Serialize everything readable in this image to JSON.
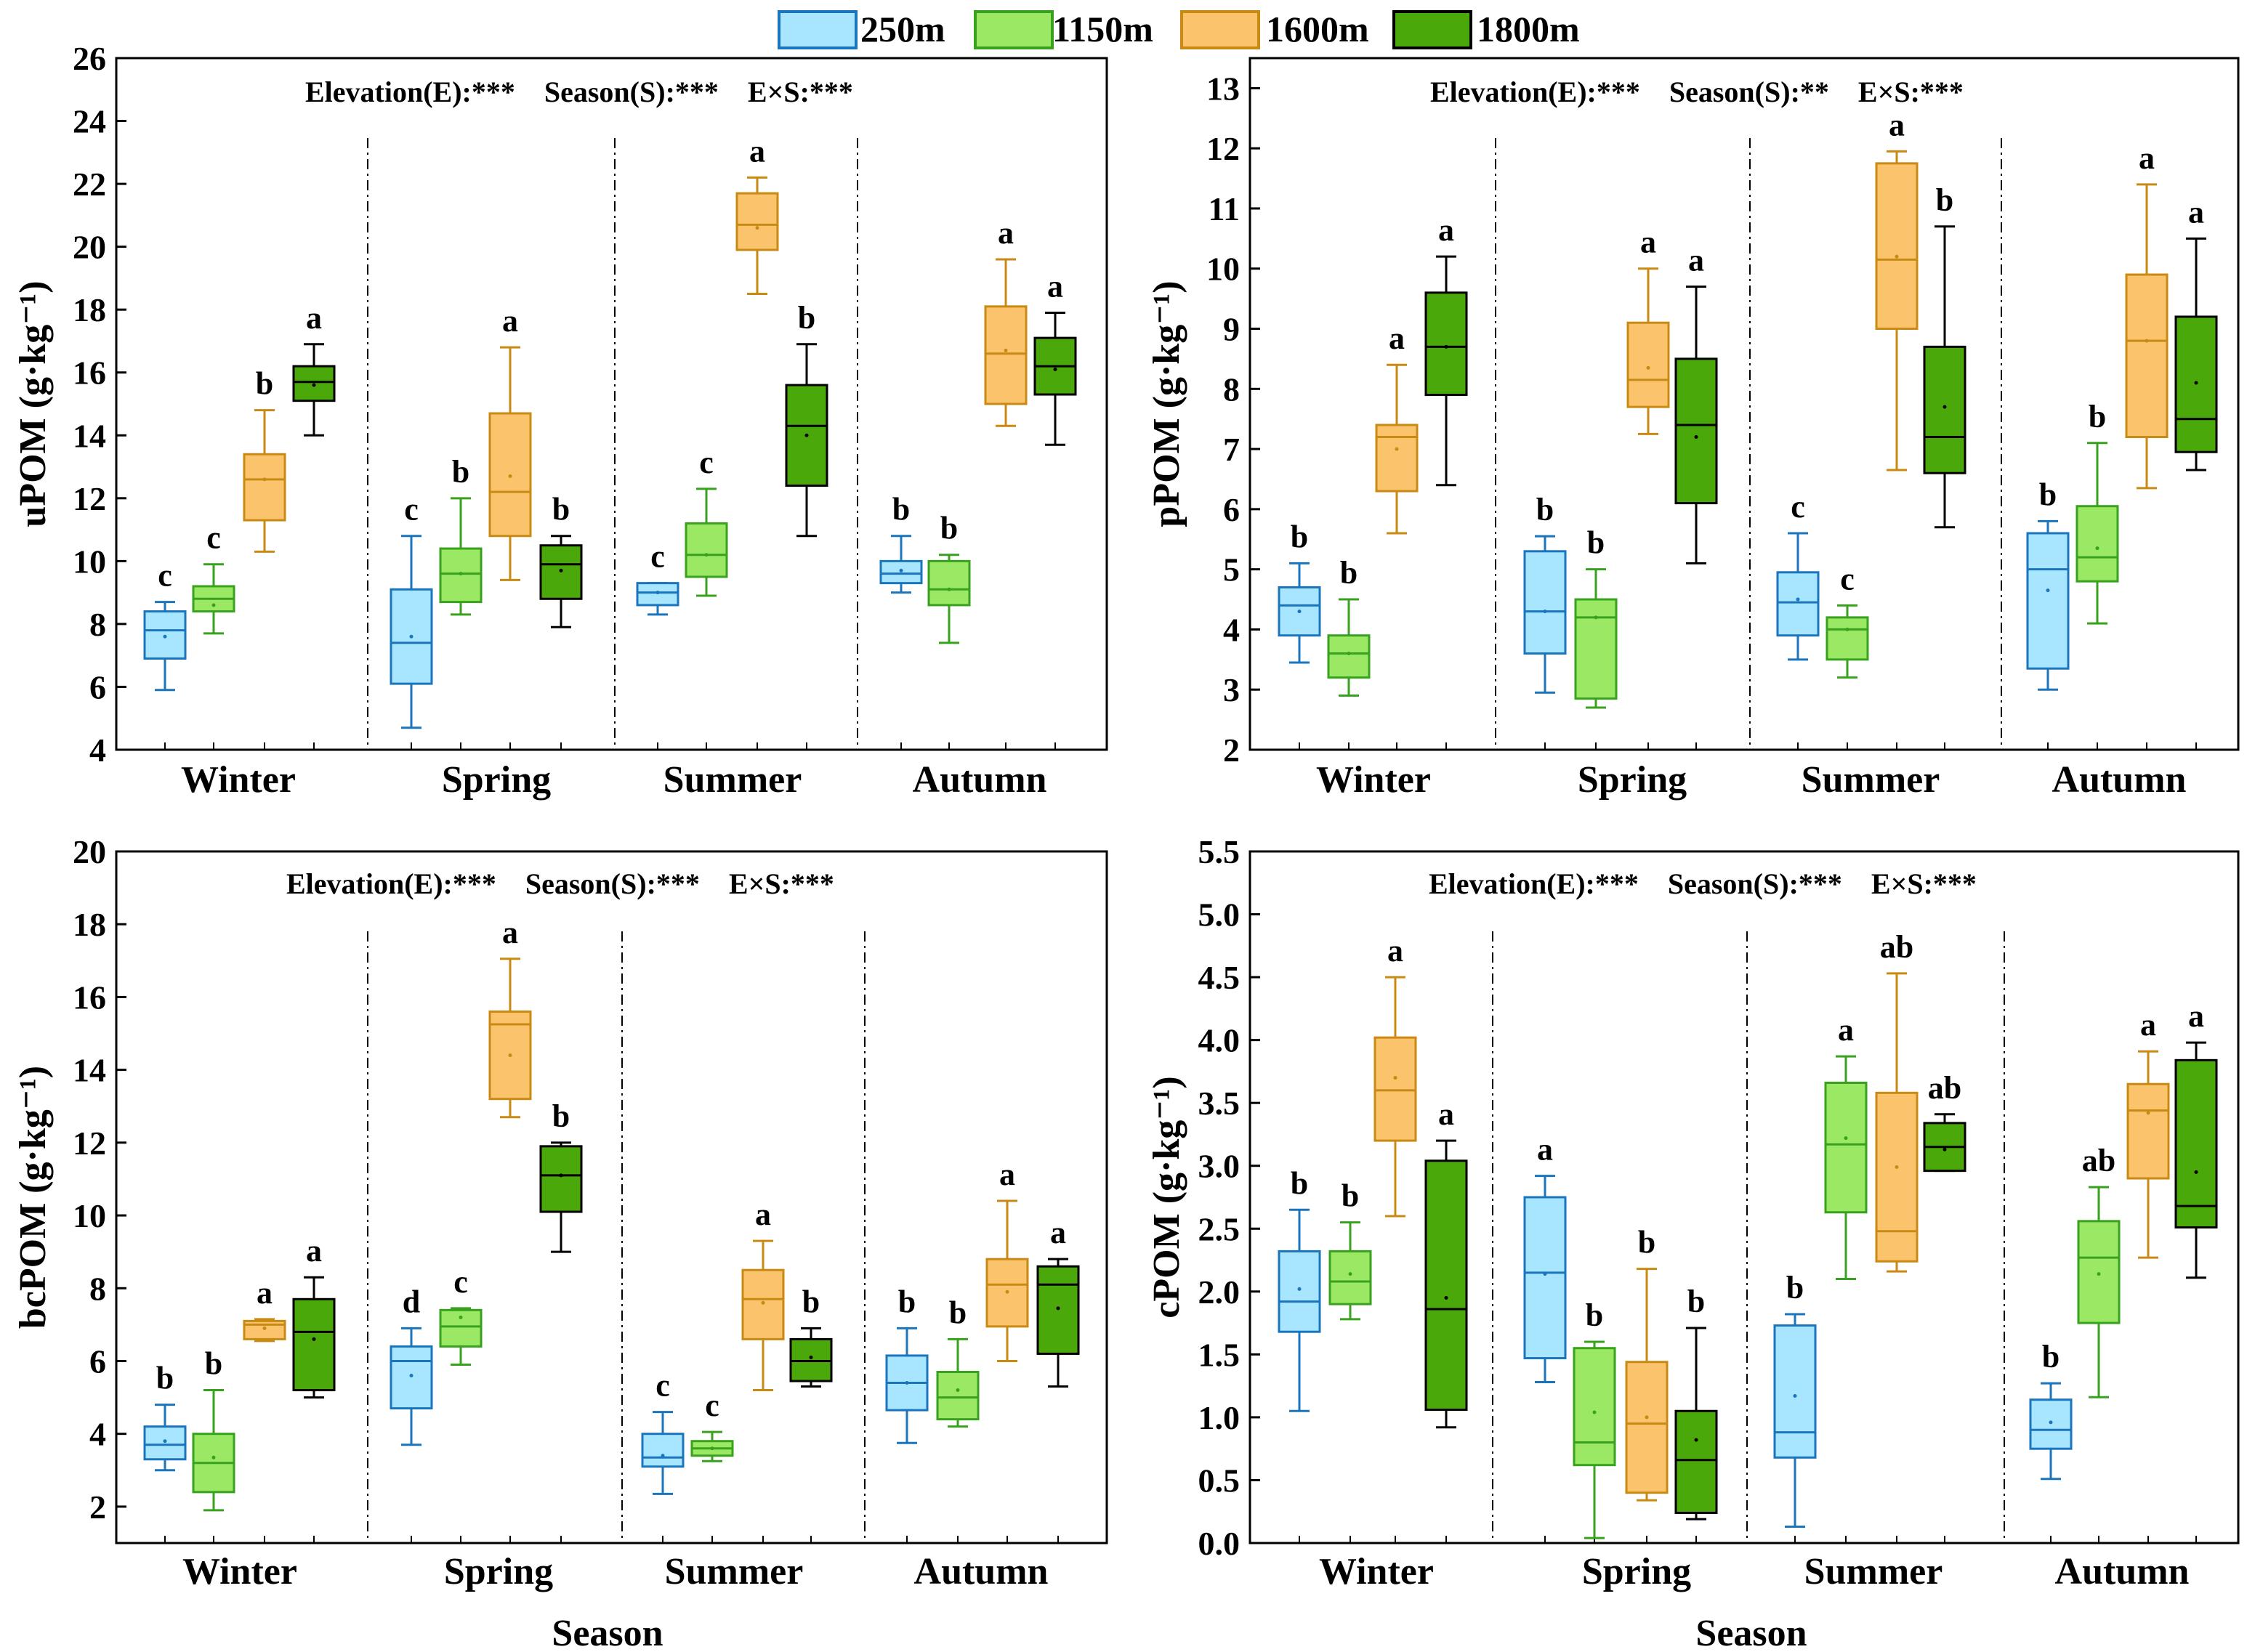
{
  "legend": [
    {
      "label": "250m",
      "fill": "#a8e6ff",
      "stroke": "#1b75bc"
    },
    {
      "label": "1150m",
      "fill": "#9be865",
      "stroke": "#38a21e"
    },
    {
      "label": "1600m",
      "fill": "#fbc46c",
      "stroke": "#c98a14"
    },
    {
      "label": "1800m",
      "fill": "#4aa80b",
      "stroke": "#000000"
    }
  ],
  "chart_data": [
    {
      "type": "box",
      "title": "",
      "ylabel": "uPOM (g·kg⁻¹)",
      "xlabel": "",
      "ylim": [
        4,
        26
      ],
      "yticks": [
        4,
        6,
        8,
        10,
        12,
        14,
        16,
        18,
        20,
        22,
        24,
        26
      ],
      "ytick_labels": [
        "4",
        "6",
        "8",
        "10",
        "12",
        "14",
        "16",
        "18",
        "20",
        "22",
        "24",
        "26"
      ],
      "categories": [
        "Winter",
        "Spring",
        "Summer",
        "Autumn"
      ],
      "stats_text": "Elevation(E):***    Season(S):***    E×S:***",
      "series": [
        "250m",
        "1150m",
        "1600m",
        "1800m"
      ],
      "boxes": [
        [
          {
            "min": 5.9,
            "q1": 6.9,
            "median": 7.8,
            "q3": 8.4,
            "max": 8.7,
            "mean": 7.6,
            "letter": "c"
          },
          {
            "min": 7.7,
            "q1": 8.4,
            "median": 8.8,
            "q3": 9.2,
            "max": 9.9,
            "mean": 8.6,
            "letter": "c"
          },
          {
            "min": 10.3,
            "q1": 11.3,
            "median": 12.6,
            "q3": 13.4,
            "max": 14.8,
            "mean": 12.6,
            "letter": "b"
          },
          {
            "min": 14.0,
            "q1": 15.1,
            "median": 15.7,
            "q3": 16.2,
            "max": 16.9,
            "mean": 15.6,
            "letter": "a"
          }
        ],
        [
          {
            "min": 4.7,
            "q1": 6.1,
            "median": 7.4,
            "q3": 9.1,
            "max": 10.8,
            "mean": 7.6,
            "letter": "c"
          },
          {
            "min": 8.3,
            "q1": 8.7,
            "median": 9.6,
            "q3": 10.4,
            "max": 12.0,
            "mean": 9.6,
            "letter": "b"
          },
          {
            "min": 9.4,
            "q1": 10.8,
            "median": 12.2,
            "q3": 14.7,
            "max": 16.8,
            "mean": 12.7,
            "letter": "a"
          },
          {
            "min": 7.9,
            "q1": 8.8,
            "median": 9.9,
            "q3": 10.5,
            "max": 10.8,
            "mean": 9.7,
            "letter": "b"
          }
        ],
        [
          {
            "min": 8.3,
            "q1": 8.6,
            "median": 9.0,
            "q3": 9.3,
            "max": 9.3,
            "mean": 9.0,
            "letter": "c"
          },
          {
            "min": 8.9,
            "q1": 9.5,
            "median": 10.2,
            "q3": 11.2,
            "max": 12.3,
            "mean": 10.2,
            "letter": "c"
          },
          {
            "min": 18.5,
            "q1": 19.9,
            "median": 20.7,
            "q3": 21.7,
            "max": 22.2,
            "mean": 20.6,
            "letter": "a"
          },
          {
            "min": 10.8,
            "q1": 12.4,
            "median": 14.3,
            "q3": 15.6,
            "max": 16.9,
            "mean": 14.0,
            "letter": "b"
          }
        ],
        [
          {
            "min": 9.0,
            "q1": 9.3,
            "median": 9.6,
            "q3": 10.0,
            "max": 10.8,
            "mean": 9.7,
            "letter": "b"
          },
          {
            "min": 7.4,
            "q1": 8.6,
            "median": 9.1,
            "q3": 10.0,
            "max": 10.2,
            "mean": 9.1,
            "letter": "b"
          },
          {
            "min": 14.3,
            "q1": 15.0,
            "median": 16.6,
            "q3": 18.1,
            "max": 19.6,
            "mean": 16.7,
            "letter": "a"
          },
          {
            "min": 13.7,
            "q1": 15.3,
            "median": 16.2,
            "q3": 17.1,
            "max": 17.9,
            "mean": 16.1,
            "letter": "a"
          }
        ]
      ]
    },
    {
      "type": "box",
      "title": "",
      "ylabel": "pPOM (g·kg⁻¹)",
      "xlabel": "",
      "ylim": [
        2,
        13.5
      ],
      "yticks": [
        2,
        3,
        4,
        5,
        6,
        7,
        8,
        9,
        10,
        11,
        12,
        13
      ],
      "ytick_labels": [
        "2",
        "3",
        "4",
        "5",
        "6",
        "7",
        "8",
        "9",
        "10",
        "11",
        "12",
        "13"
      ],
      "categories": [
        "Winter",
        "Spring",
        "Summer",
        "Autumn"
      ],
      "stats_text": "Elevation(E):***    Season(S):**    E×S:***",
      "series": [
        "250m",
        "1150m",
        "1600m",
        "1800m"
      ],
      "boxes": [
        [
          {
            "min": 3.45,
            "q1": 3.9,
            "median": 4.4,
            "q3": 4.7,
            "max": 5.1,
            "mean": 4.3,
            "letter": "b"
          },
          {
            "min": 2.9,
            "q1": 3.2,
            "median": 3.6,
            "q3": 3.9,
            "max": 4.5,
            "mean": 3.6,
            "letter": "b"
          },
          {
            "min": 5.6,
            "q1": 6.3,
            "median": 7.2,
            "q3": 7.4,
            "max": 8.4,
            "mean": 7.0,
            "letter": "a"
          },
          {
            "min": 6.4,
            "q1": 7.9,
            "median": 8.7,
            "q3": 9.6,
            "max": 10.2,
            "mean": 8.7,
            "letter": "a"
          }
        ],
        [
          {
            "min": 2.95,
            "q1": 3.6,
            "median": 4.3,
            "q3": 5.3,
            "max": 5.55,
            "mean": 4.3,
            "letter": "b"
          },
          {
            "min": 2.7,
            "q1": 2.85,
            "median": 4.2,
            "q3": 4.5,
            "max": 5.0,
            "mean": 4.2,
            "letter": "b"
          },
          {
            "min": 7.25,
            "q1": 7.7,
            "median": 8.15,
            "q3": 9.1,
            "max": 10.0,
            "mean": 8.35,
            "letter": "a"
          },
          {
            "min": 5.1,
            "q1": 6.1,
            "median": 7.4,
            "q3": 8.5,
            "max": 9.7,
            "mean": 7.2,
            "letter": "a"
          }
        ],
        [
          {
            "min": 3.5,
            "q1": 3.9,
            "median": 4.45,
            "q3": 4.95,
            "max": 5.6,
            "mean": 4.5,
            "letter": "c"
          },
          {
            "min": 3.2,
            "q1": 3.5,
            "median": 4.0,
            "q3": 4.2,
            "max": 4.4,
            "mean": 4.0,
            "letter": "c"
          },
          {
            "min": 6.65,
            "q1": 9.0,
            "median": 10.15,
            "q3": 11.75,
            "max": 11.95,
            "mean": 10.2,
            "letter": "a"
          },
          {
            "min": 5.7,
            "q1": 6.6,
            "median": 7.2,
            "q3": 8.7,
            "max": 10.7,
            "mean": 7.7,
            "letter": "b"
          }
        ],
        [
          {
            "min": 3.0,
            "q1": 3.35,
            "median": 5.0,
            "q3": 5.6,
            "max": 5.8,
            "mean": 4.65,
            "letter": "b"
          },
          {
            "min": 4.1,
            "q1": 4.8,
            "median": 5.2,
            "q3": 6.05,
            "max": 7.1,
            "mean": 5.35,
            "letter": "b"
          },
          {
            "min": 6.35,
            "q1": 7.2,
            "median": 8.8,
            "q3": 9.9,
            "max": 11.4,
            "mean": 8.8,
            "letter": "a"
          },
          {
            "min": 6.65,
            "q1": 6.95,
            "median": 7.5,
            "q3": 9.2,
            "max": 10.5,
            "mean": 8.1,
            "letter": "a"
          }
        ]
      ]
    },
    {
      "type": "box",
      "title": "",
      "ylabel": "bcPOM (g·kg⁻¹)",
      "xlabel": "Season",
      "ylim": [
        1,
        20
      ],
      "yticks": [
        2,
        4,
        6,
        8,
        10,
        12,
        14,
        16,
        18,
        20
      ],
      "ytick_labels": [
        "2",
        "4",
        "6",
        "8",
        "10",
        "12",
        "14",
        "16",
        "18",
        "20"
      ],
      "categories": [
        "Winter",
        "Spring",
        "Summer",
        "Autumn"
      ],
      "stats_text": "Elevation(E):***    Season(S):***    E×S:***",
      "series": [
        "250m",
        "1150m",
        "1600m",
        "1800m"
      ],
      "boxes": [
        [
          {
            "min": 3.0,
            "q1": 3.3,
            "median": 3.7,
            "q3": 4.2,
            "max": 4.8,
            "mean": 3.8,
            "letter": "b"
          },
          {
            "min": 1.9,
            "q1": 2.4,
            "median": 3.2,
            "q3": 4.0,
            "max": 5.2,
            "mean": 3.35,
            "letter": "b"
          },
          {
            "min": 6.55,
            "q1": 6.6,
            "median": 7.0,
            "q3": 7.1,
            "max": 7.15,
            "mean": 6.9,
            "letter": "a"
          },
          {
            "min": 5.0,
            "q1": 5.2,
            "median": 6.8,
            "q3": 7.7,
            "max": 8.3,
            "mean": 6.6,
            "letter": "a"
          }
        ],
        [
          {
            "min": 3.7,
            "q1": 4.7,
            "median": 6.0,
            "q3": 6.4,
            "max": 6.9,
            "mean": 5.6,
            "letter": "d"
          },
          {
            "min": 5.9,
            "q1": 6.4,
            "median": 6.95,
            "q3": 7.4,
            "max": 7.45,
            "mean": 7.2,
            "letter": "c"
          },
          {
            "min": 12.7,
            "q1": 13.2,
            "median": 15.25,
            "q3": 15.6,
            "max": 17.05,
            "mean": 14.4,
            "letter": "a"
          },
          {
            "min": 9.0,
            "q1": 10.1,
            "median": 11.1,
            "q3": 11.9,
            "max": 12.0,
            "mean": 11.1,
            "letter": "b"
          }
        ],
        [
          {
            "min": 2.35,
            "q1": 3.1,
            "median": 3.35,
            "q3": 4.0,
            "max": 4.6,
            "mean": 3.4,
            "letter": "c"
          },
          {
            "min": 3.25,
            "q1": 3.4,
            "median": 3.6,
            "q3": 3.8,
            "max": 4.05,
            "mean": 3.6,
            "letter": "c"
          },
          {
            "min": 5.2,
            "q1": 6.6,
            "median": 7.7,
            "q3": 8.5,
            "max": 9.3,
            "mean": 7.6,
            "letter": "a"
          },
          {
            "min": 5.3,
            "q1": 5.45,
            "median": 6.0,
            "q3": 6.6,
            "max": 6.9,
            "mean": 6.1,
            "letter": "b"
          }
        ],
        [
          {
            "min": 3.75,
            "q1": 4.65,
            "median": 5.4,
            "q3": 6.15,
            "max": 6.9,
            "mean": 5.4,
            "letter": "b"
          },
          {
            "min": 4.2,
            "q1": 4.4,
            "median": 5.0,
            "q3": 5.7,
            "max": 6.6,
            "mean": 5.2,
            "letter": "b"
          },
          {
            "min": 6.0,
            "q1": 6.95,
            "median": 8.1,
            "q3": 8.8,
            "max": 10.4,
            "mean": 7.9,
            "letter": "a"
          },
          {
            "min": 5.3,
            "q1": 6.2,
            "median": 8.1,
            "q3": 8.6,
            "max": 8.8,
            "mean": 7.45,
            "letter": "a"
          }
        ]
      ]
    },
    {
      "type": "box",
      "title": "",
      "ylabel": "cPOM (g·kg⁻¹)",
      "xlabel": "Season",
      "ylim": [
        0,
        5.5
      ],
      "yticks": [
        0,
        0.5,
        1.0,
        1.5,
        2.0,
        2.5,
        3.0,
        3.5,
        4.0,
        4.5,
        5.0,
        5.5
      ],
      "ytick_labels": [
        "0.0",
        "0.5",
        "1.0",
        "1.5",
        "2.0",
        "2.5",
        "3.0",
        "3.5",
        "4.0",
        "4.5",
        "5.0",
        "5.5"
      ],
      "categories": [
        "Winter",
        "Spring",
        "Summer",
        "Autumn"
      ],
      "stats_text": "Elevation(E):***    Season(S):***    E×S:***",
      "series": [
        "250m",
        "1150m",
        "1600m",
        "1800m"
      ],
      "boxes": [
        [
          {
            "min": 1.05,
            "q1": 1.68,
            "median": 1.92,
            "q3": 2.32,
            "max": 2.65,
            "mean": 2.02,
            "letter": "b"
          },
          {
            "min": 1.78,
            "q1": 1.9,
            "median": 2.08,
            "q3": 2.32,
            "max": 2.55,
            "mean": 2.14,
            "letter": "b"
          },
          {
            "min": 2.6,
            "q1": 3.2,
            "median": 3.6,
            "q3": 4.02,
            "max": 4.5,
            "mean": 3.7,
            "letter": "a"
          },
          {
            "min": 0.92,
            "q1": 1.06,
            "median": 1.86,
            "q3": 3.04,
            "max": 3.2,
            "mean": 1.95,
            "letter": "a"
          }
        ],
        [
          {
            "min": 1.28,
            "q1": 1.47,
            "median": 2.15,
            "q3": 2.75,
            "max": 2.92,
            "mean": 2.14,
            "letter": "a"
          },
          {
            "min": 0.04,
            "q1": 0.62,
            "median": 0.8,
            "q3": 1.55,
            "max": 1.6,
            "mean": 1.04,
            "letter": "b"
          },
          {
            "min": 0.34,
            "q1": 0.4,
            "median": 0.95,
            "q3": 1.44,
            "max": 2.18,
            "mean": 1.0,
            "letter": "b"
          },
          {
            "min": 0.19,
            "q1": 0.24,
            "median": 0.66,
            "q3": 1.05,
            "max": 1.71,
            "mean": 0.82,
            "letter": "b"
          }
        ],
        [
          {
            "min": 0.13,
            "q1": 0.68,
            "median": 0.88,
            "q3": 1.73,
            "max": 1.82,
            "mean": 1.17,
            "letter": "b"
          },
          {
            "min": 2.1,
            "q1": 2.63,
            "median": 3.17,
            "q3": 3.66,
            "max": 3.87,
            "mean": 3.22,
            "letter": "a"
          },
          {
            "min": 2.16,
            "q1": 2.24,
            "median": 2.48,
            "q3": 3.58,
            "max": 4.53,
            "mean": 2.99,
            "letter": "ab"
          },
          {
            "min": 2.96,
            "q1": 2.96,
            "median": 3.15,
            "q3": 3.34,
            "max": 3.41,
            "mean": 3.13,
            "letter": "ab"
          }
        ],
        [
          {
            "min": 0.51,
            "q1": 0.75,
            "median": 0.9,
            "q3": 1.14,
            "max": 1.27,
            "mean": 0.96,
            "letter": "b"
          },
          {
            "min": 1.16,
            "q1": 1.75,
            "median": 2.27,
            "q3": 2.56,
            "max": 2.83,
            "mean": 2.14,
            "letter": "ab"
          },
          {
            "min": 2.27,
            "q1": 2.9,
            "median": 3.44,
            "q3": 3.65,
            "max": 3.91,
            "mean": 3.42,
            "letter": "a"
          },
          {
            "min": 2.11,
            "q1": 2.51,
            "median": 2.68,
            "q3": 3.84,
            "max": 3.98,
            "mean": 2.95,
            "letter": "a"
          }
        ]
      ]
    }
  ]
}
